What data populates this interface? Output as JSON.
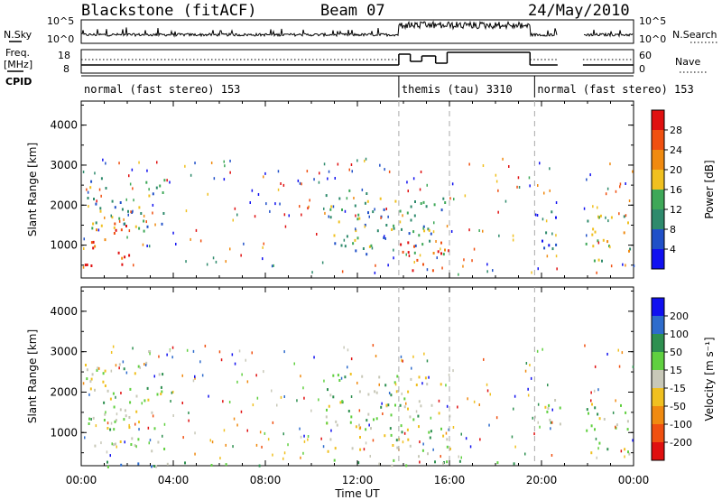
{
  "title": {
    "station": "Blackstone (fitACF)",
    "beam": "Beam 07",
    "date": "24/May/2010"
  },
  "header_labels": {
    "nsky": "N.Sky",
    "nsearch": "N.Search",
    "freq_top": "Freq.",
    "freq_unit": "[MHz]",
    "nave": "Nave",
    "cpid": "CPID",
    "nsky_tick_top": "10^5",
    "nsky_tick_bottom": "10^0",
    "freq_ticks": [
      "18",
      "8"
    ],
    "nave_ticks": [
      "60",
      "0"
    ]
  },
  "cpid_segments": [
    {
      "label": "normal (fast stereo) 153",
      "start_hour": 0.0,
      "end_hour": 13.8
    },
    {
      "label": "themis (tau) 3310",
      "start_hour": 13.8,
      "end_hour": 19.7
    },
    {
      "label": "normal (fast stereo) 153",
      "start_hour": 19.7,
      "end_hour": 24.0
    }
  ],
  "x_axis": {
    "label": "Time UT",
    "range_hours": [
      0,
      24
    ],
    "ticks": [
      "00:00",
      "04:00",
      "08:00",
      "12:00",
      "16:00",
      "20:00",
      "00:00"
    ],
    "dashed_lines_hours": [
      13.8,
      16.0,
      19.7
    ]
  },
  "chart_data": [
    {
      "type": "heatmap",
      "name": "power",
      "ylabel": "Slant Range [km]",
      "ylim": [
        180,
        4600
      ],
      "yticks": [
        "1000",
        "2000",
        "3000",
        "4000"
      ],
      "ytick_values": [
        1000,
        2000,
        3000,
        4000
      ],
      "colorbar": {
        "label": "Power [dB]",
        "ticks": [
          "4",
          "8",
          "12",
          "16",
          "20",
          "24",
          "28"
        ],
        "colors": [
          "#1010f0",
          "#2050c8",
          "#2e8a6c",
          "#3ea858",
          "#f0c020",
          "#f08a10",
          "#f05010",
          "#e01010"
        ]
      },
      "regions": [
        {
          "t0": 0.1,
          "t1": 2.2,
          "r0": 500,
          "r1": 1600,
          "level": 7
        },
        {
          "t0": 0.2,
          "t1": 3.6,
          "r0": 1300,
          "r1": 2700,
          "level": 3
        },
        {
          "t0": 10.6,
          "t1": 15.8,
          "r0": 800,
          "r1": 2400,
          "level": 3
        },
        {
          "t0": 13.8,
          "t1": 16.0,
          "r0": 300,
          "r1": 1100,
          "level": 7
        },
        {
          "t0": 19.8,
          "t1": 20.8,
          "r0": 900,
          "r1": 1900,
          "level": 1
        },
        {
          "t0": 21.9,
          "t1": 23.9,
          "r0": 500,
          "r1": 1800,
          "level": 4
        }
      ]
    },
    {
      "type": "heatmap",
      "name": "velocity",
      "ylabel": "Slant Range [km]",
      "ylim": [
        180,
        4600
      ],
      "yticks": [
        "1000",
        "2000",
        "3000",
        "4000"
      ],
      "ytick_values": [
        1000,
        2000,
        3000,
        4000
      ],
      "colorbar": {
        "label": "Velocity [m s⁻¹]",
        "ticks": [
          "200",
          "100",
          "50",
          "15",
          "-15",
          "-50",
          "-100",
          "-200"
        ],
        "colors": [
          "#1010f0",
          "#2e6ccc",
          "#2e9050",
          "#60d040",
          "#c8c8b8",
          "#f0c020",
          "#f08a10",
          "#f05010",
          "#e01010"
        ]
      },
      "regions": [
        {
          "t0": 0.1,
          "t1": 3.6,
          "r0": 500,
          "r1": 2800,
          "level": 4
        },
        {
          "t0": 10.6,
          "t1": 16.0,
          "r0": 300,
          "r1": 2500,
          "level": 4
        },
        {
          "t0": 19.8,
          "t1": 20.8,
          "r0": 900,
          "r1": 1900,
          "level": 4
        },
        {
          "t0": 21.9,
          "t1": 23.9,
          "r0": 500,
          "r1": 1800,
          "level": 4
        },
        {
          "t0": 0.0,
          "t1": 19.0,
          "r0": 180,
          "r1": 320,
          "level": 3
        }
      ]
    }
  ]
}
